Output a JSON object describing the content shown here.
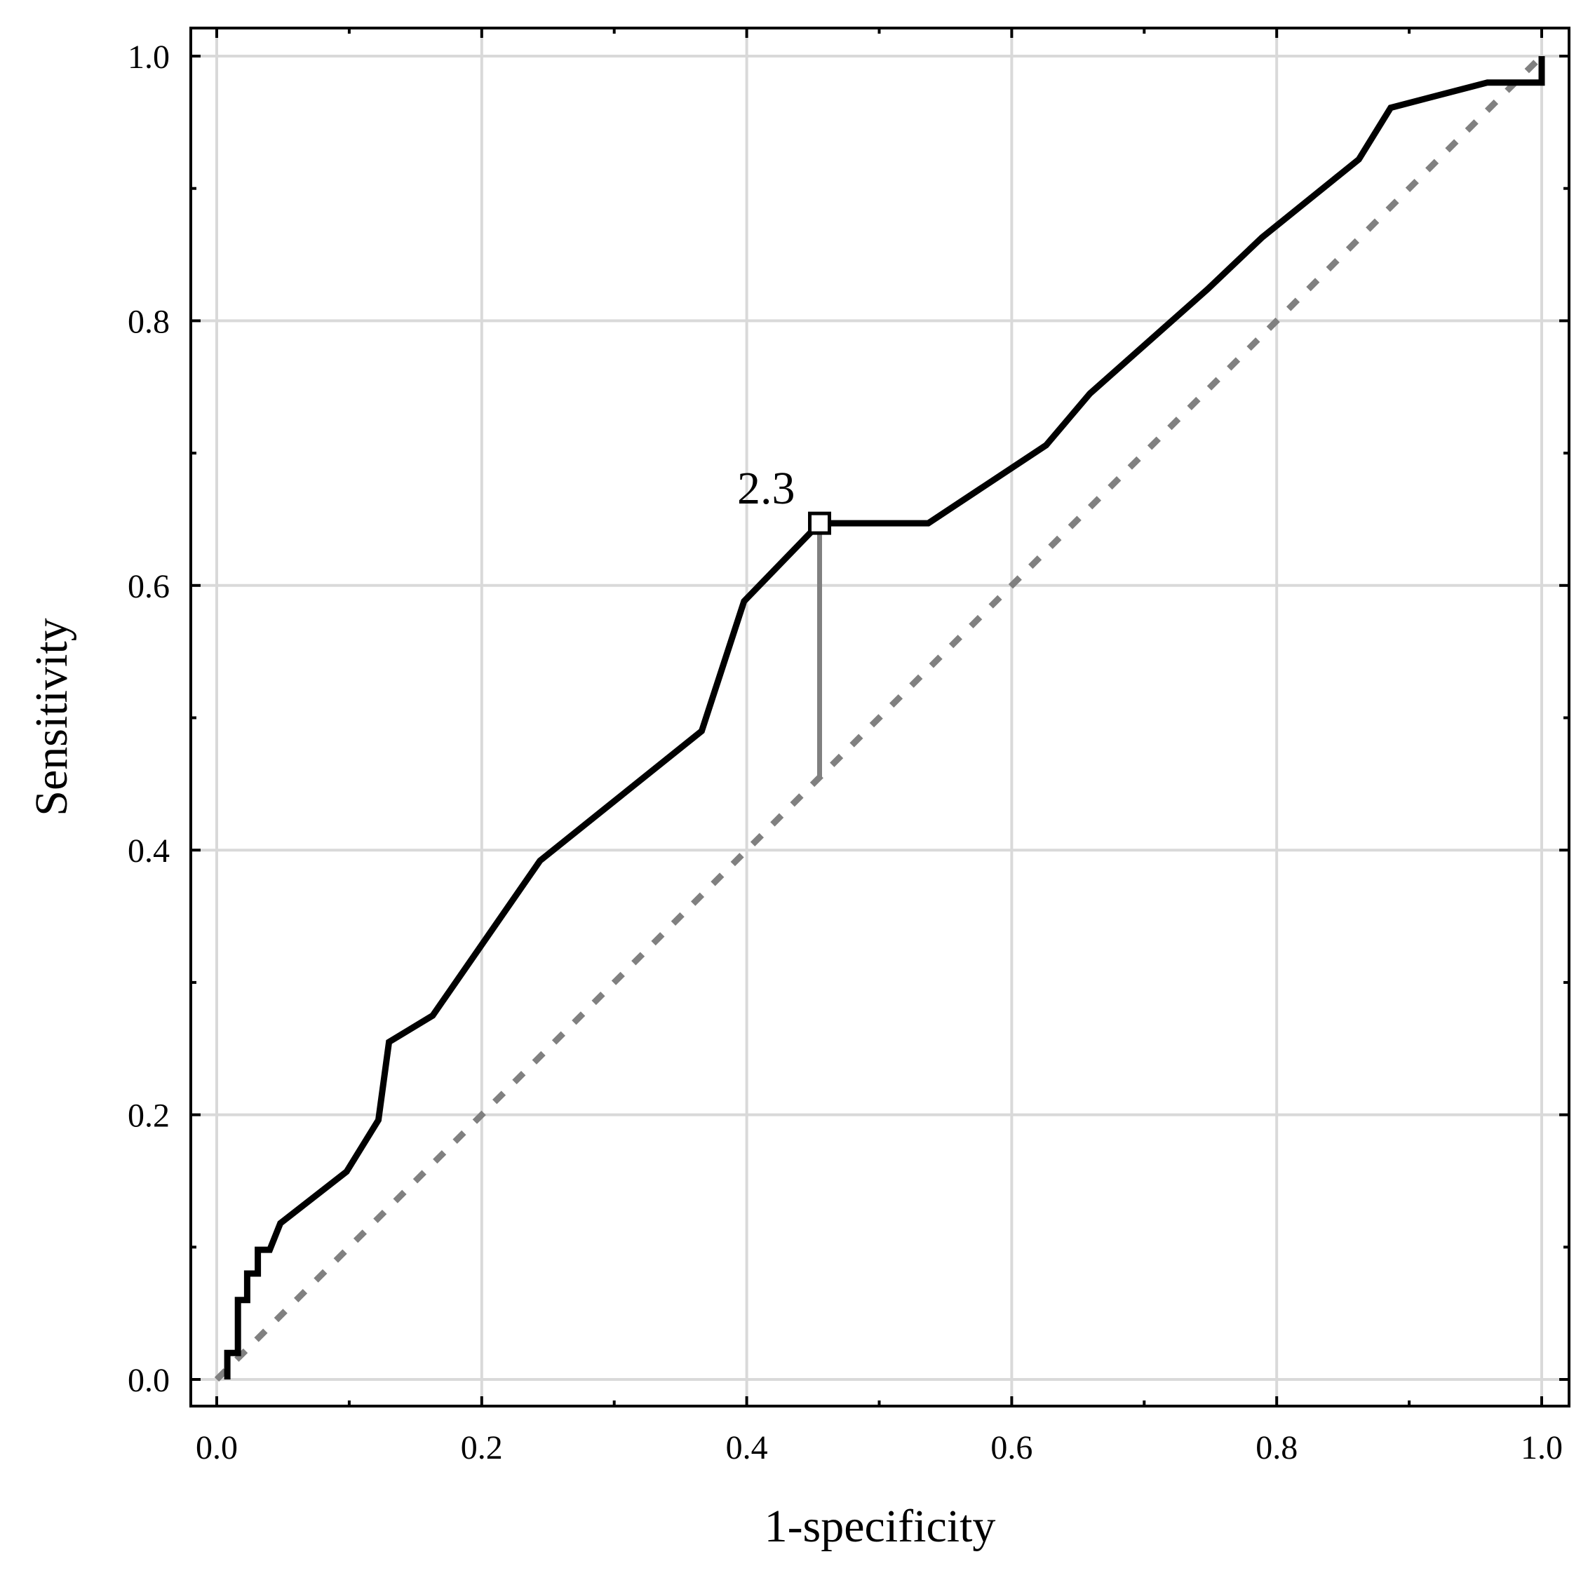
{
  "chart_data": {
    "type": "line",
    "title": "",
    "xlabel": "1-specificity",
    "ylabel": "Sensitivity",
    "xlim": [
      0,
      1
    ],
    "ylim": [
      0,
      1
    ],
    "xticks": [
      "0.0",
      "0.2",
      "0.4",
      "0.6",
      "0.8",
      "1.0"
    ],
    "yticks": [
      "0.0",
      "0.2",
      "0.4",
      "0.6",
      "0.8",
      "1.0"
    ],
    "grid": true,
    "series": [
      {
        "style": "solid black",
        "x": [
          0.008,
          0.008,
          0.016,
          0.016,
          0.023,
          0.023,
          0.031,
          0.031,
          0.04,
          0.048,
          0.098,
          0.122,
          0.13,
          0.163,
          0.244,
          0.366,
          0.398,
          0.455,
          0.537,
          0.626,
          0.659,
          0.748,
          0.789,
          0.862,
          0.886,
          0.959,
          1.0,
          1.0
        ],
        "y": [
          0.0,
          0.02,
          0.02,
          0.06,
          0.06,
          0.08,
          0.08,
          0.098,
          0.098,
          0.118,
          0.157,
          0.196,
          0.255,
          0.275,
          0.392,
          0.49,
          0.588,
          0.647,
          0.647,
          0.706,
          0.745,
          0.824,
          0.863,
          0.922,
          0.961,
          0.98,
          0.98,
          1.0
        ]
      },
      {
        "style": "dashed gray",
        "x": [
          0,
          1
        ],
        "y": [
          0,
          1
        ]
      }
    ],
    "annotations": [
      {
        "text": "2.3",
        "x": 0.455,
        "y": 0.647,
        "drop_to_y": 0.455
      }
    ]
  }
}
